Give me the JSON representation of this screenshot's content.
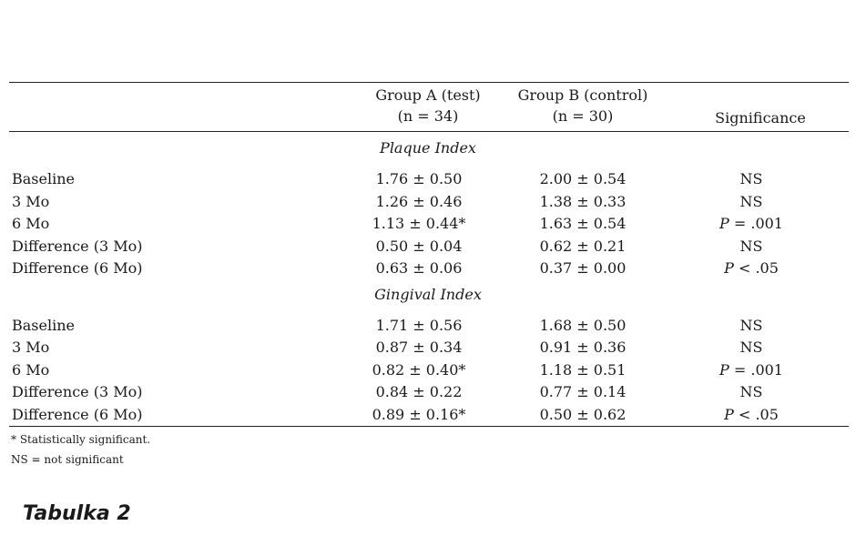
{
  "table": {
    "headers": {
      "group_a_line1": "Group A (test)",
      "group_a_line2": "(n = 34)",
      "group_b_line1": "Group B (control)",
      "group_b_line2": "(n = 30)",
      "significance": "Significance"
    },
    "sections": [
      {
        "title": "Plaque Index",
        "rows": [
          {
            "label": "Baseline",
            "a": "1.76 ± 0.50",
            "b": "2.00 ± 0.54",
            "sig": "NS"
          },
          {
            "label": "3 Mo",
            "a": "1.26 ± 0.46",
            "b": "1.38 ± 0.33",
            "sig": "NS"
          },
          {
            "label": "6 Mo",
            "a": "1.13 ± 0.44*",
            "b": "1.63 ± 0.54",
            "sig": "P = .001"
          },
          {
            "label": "Difference (3 Mo)",
            "a": "0.50 ± 0.04",
            "b": "0.62 ± 0.21",
            "sig": "NS"
          },
          {
            "label": "Difference (6 Mo)",
            "a": "0.63 ± 0.06",
            "b": "0.37 ± 0.00",
            "sig": "P < .05"
          }
        ]
      },
      {
        "title": "Gingival Index",
        "rows": [
          {
            "label": "Baseline",
            "a": "1.71 ± 0.56",
            "b": "1.68 ± 0.50",
            "sig": "NS"
          },
          {
            "label": "3 Mo",
            "a": "0.87 ± 0.34",
            "b": "0.91 ± 0.36",
            "sig": "NS"
          },
          {
            "label": "6 Mo",
            "a": "0.82 ± 0.40*",
            "b": "1.18 ± 0.51",
            "sig": "P = .001"
          },
          {
            "label": "Difference (3 Mo)",
            "a": "0.84 ± 0.22",
            "b": "0.77 ± 0.14",
            "sig": "NS"
          },
          {
            "label": "Difference (6 Mo)",
            "a": "0.89 ± 0.16*",
            "b": "0.50 ± 0.62",
            "sig": "P < .05"
          }
        ]
      }
    ]
  },
  "notes": {
    "footnote": "* Statistically significant.",
    "ns_definition": "NS = not significant"
  },
  "caption": "Tabulka 2"
}
